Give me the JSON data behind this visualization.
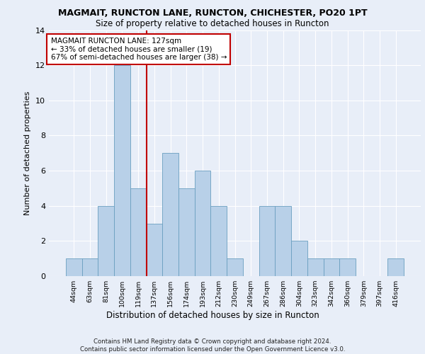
{
  "title1": "MAGMAIT, RUNCTON LANE, RUNCTON, CHICHESTER, PO20 1PT",
  "title2": "Size of property relative to detached houses in Runcton",
  "xlabel": "Distribution of detached houses by size in Runcton",
  "ylabel": "Number of detached properties",
  "categories": [
    "44sqm",
    "63sqm",
    "81sqm",
    "100sqm",
    "119sqm",
    "137sqm",
    "156sqm",
    "174sqm",
    "193sqm",
    "212sqm",
    "230sqm",
    "249sqm",
    "267sqm",
    "286sqm",
    "304sqm",
    "323sqm",
    "342sqm",
    "360sqm",
    "379sqm",
    "397sqm",
    "416sqm"
  ],
  "values": [
    1,
    1,
    4,
    12,
    5,
    3,
    7,
    5,
    6,
    4,
    1,
    0,
    4,
    4,
    2,
    1,
    1,
    1,
    0,
    0,
    1
  ],
  "bar_color": "#b8d0e8",
  "bar_edge_color": "#6a9fc0",
  "vline_x_index": 5,
  "vline_color": "#c00000",
  "annotation_text": "MAGMAIT RUNCTON LANE: 127sqm\n← 33% of detached houses are smaller (19)\n67% of semi-detached houses are larger (38) →",
  "annotation_box_color": "#ffffff",
  "annotation_box_edge": "#c00000",
  "ylim": [
    0,
    14
  ],
  "yticks": [
    0,
    2,
    4,
    6,
    8,
    10,
    12,
    14
  ],
  "footer": "Contains HM Land Registry data © Crown copyright and database right 2024.\nContains public sector information licensed under the Open Government Licence v3.0.",
  "background_color": "#e8eef8",
  "plot_bg_color": "#e8eef8",
  "grid_color": "#ffffff"
}
